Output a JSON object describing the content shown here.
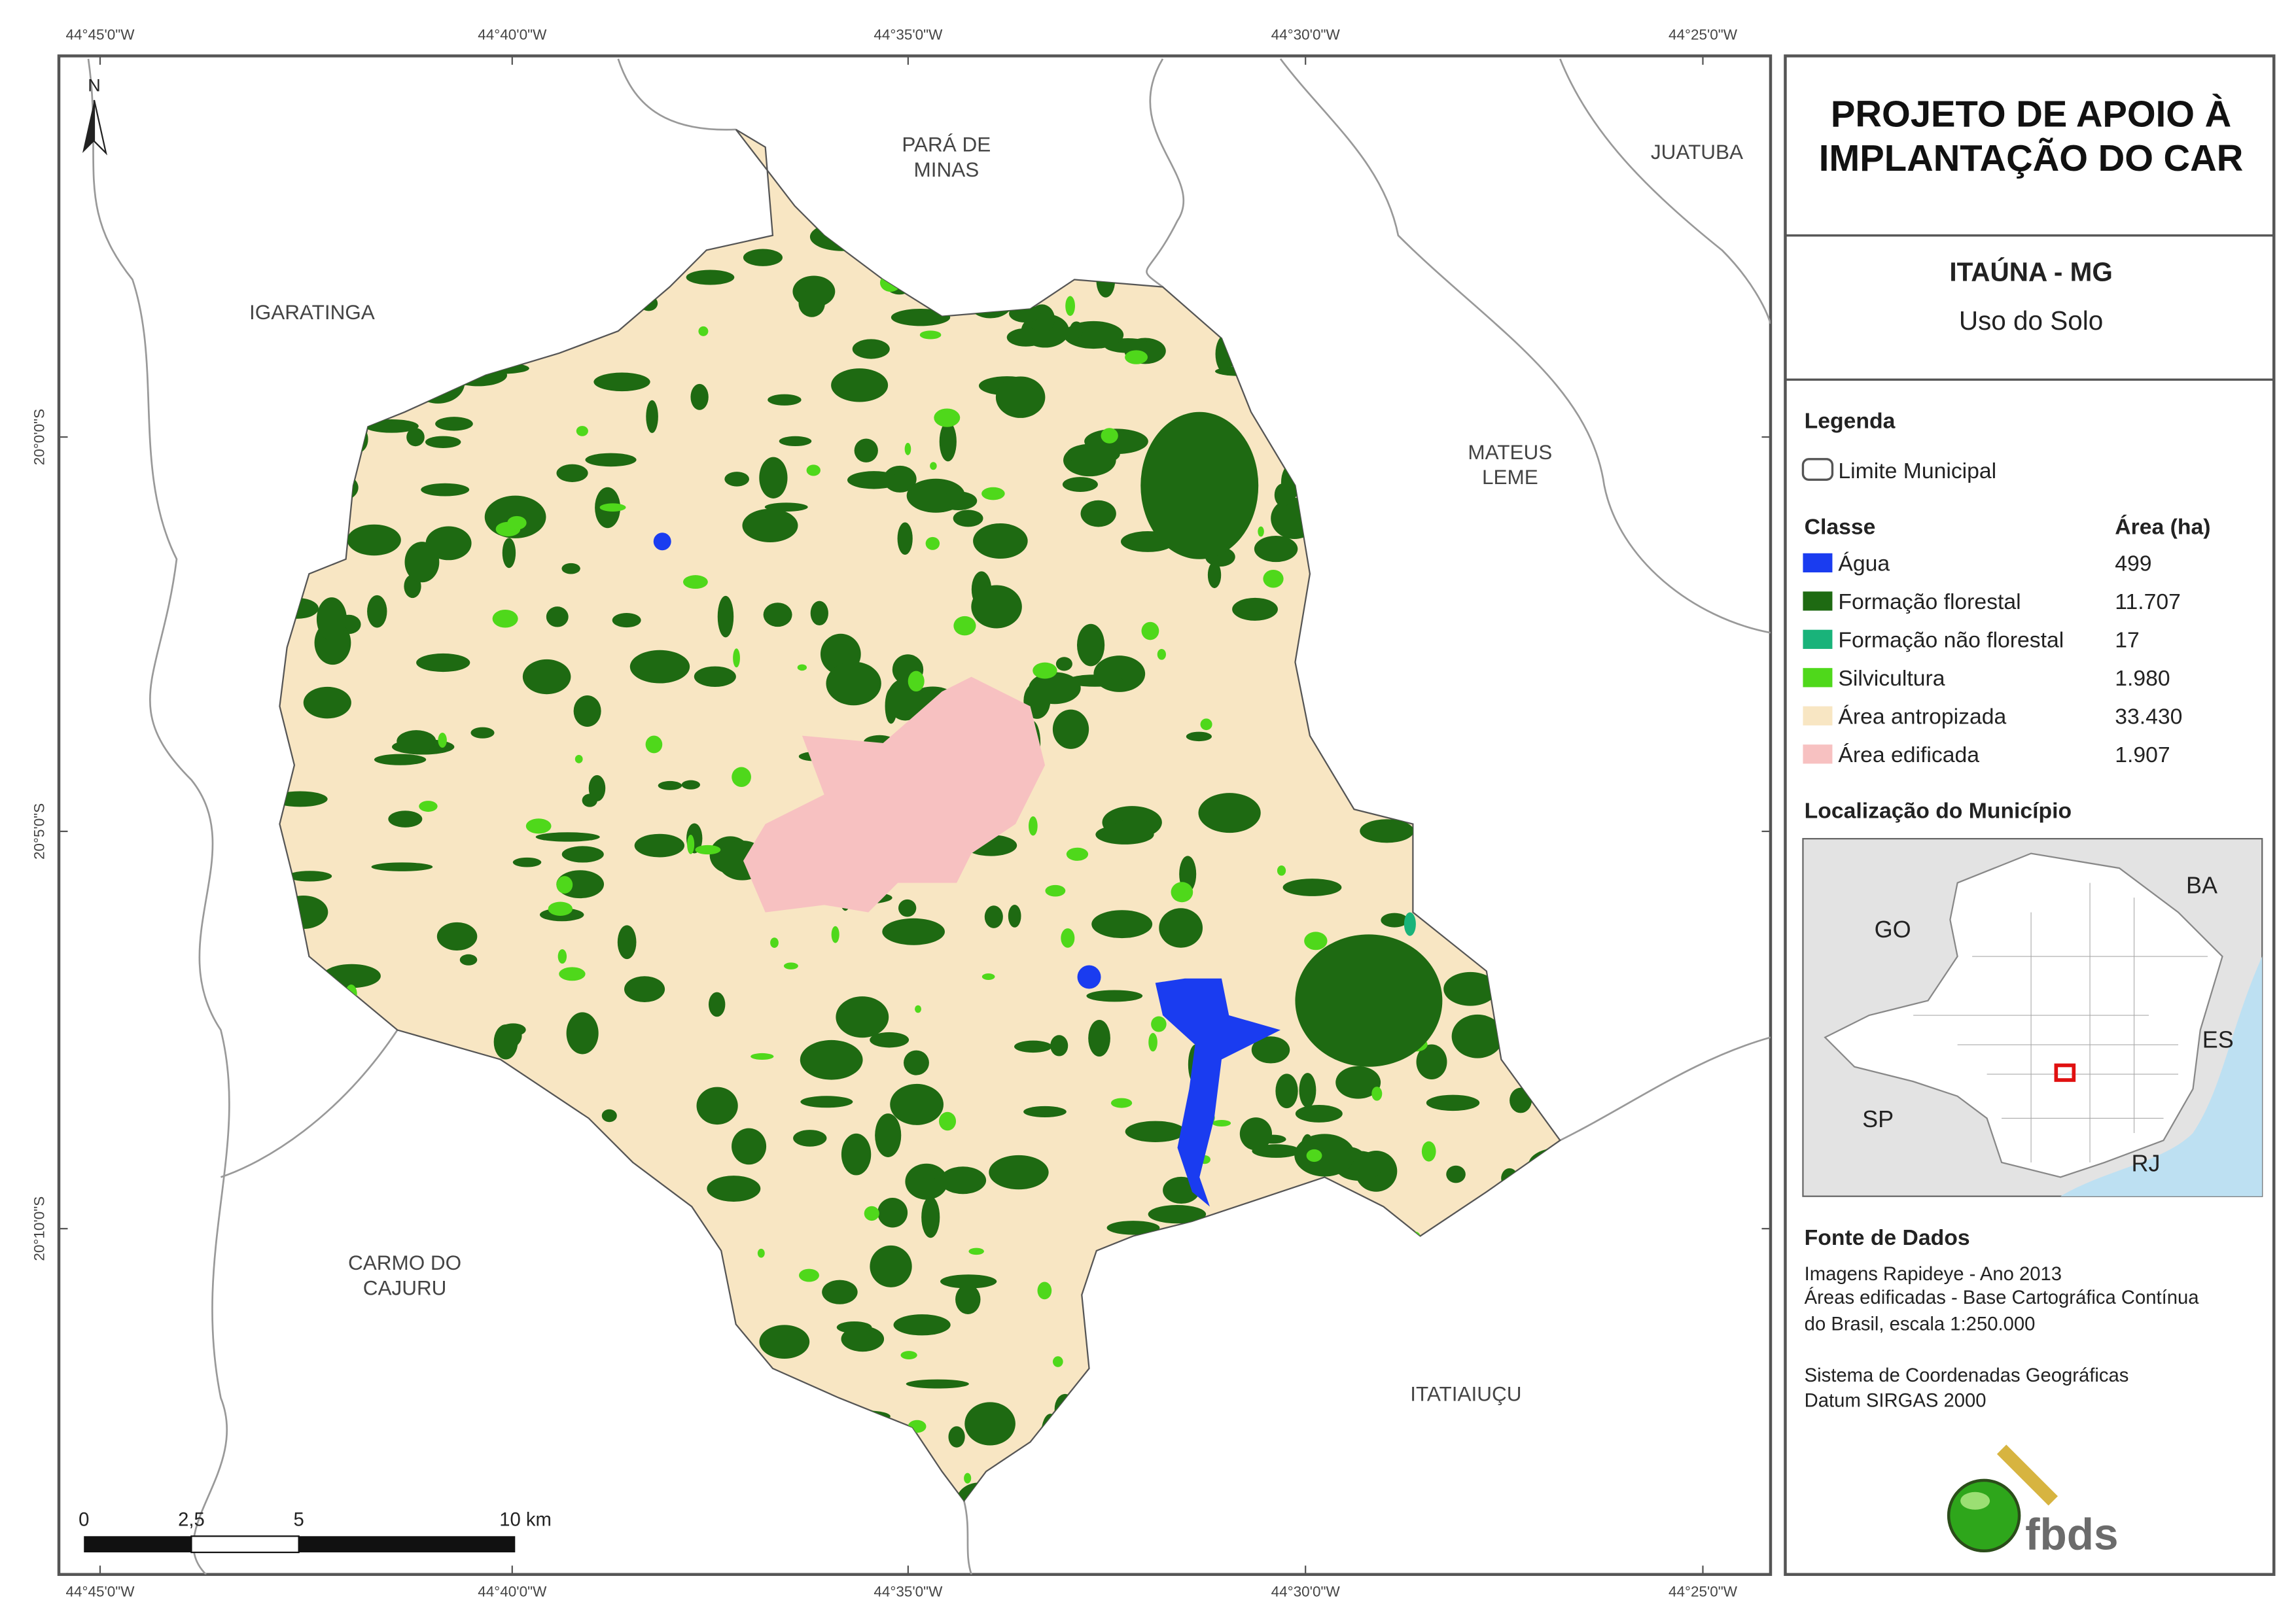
{
  "map": {
    "lon_labels": [
      "44°45'0\"W",
      "44°40'0\"W",
      "44°35'0\"W",
      "44°30'0\"W",
      "44°25'0\"W"
    ],
    "lat_labels": [
      "20°0'0\"S",
      "20°5'0\"S",
      "20°10'0\"S"
    ],
    "places": [
      [
        "IGARATINGA"
      ],
      [
        "PARÁ DE",
        "MINAS"
      ],
      [
        "JUATUBA"
      ],
      [
        "MATEUS",
        "LEME"
      ],
      [
        "CARMO DO",
        "CAJURU"
      ],
      [
        "ITATIAIUÇU"
      ]
    ],
    "north": "N",
    "scale": [
      "0",
      "2,5",
      "5",
      "10 km"
    ]
  },
  "title": [
    "PROJETO DE APOIO À",
    "IMPLANTAÇÃO DO CAR"
  ],
  "municipality": "ITAÚNA - MG",
  "subtitle": "Uso do Solo",
  "legend": {
    "heading": "Legenda",
    "boundary": "Limite Municipal",
    "class_header": "Classe",
    "area_header": "Área (ha)",
    "classes": [
      {
        "name": "Água",
        "area": "499",
        "color": "#1a3cf0"
      },
      {
        "name": "Formação florestal",
        "area": "11.707",
        "color": "#1e6a12"
      },
      {
        "name": "Formação não florestal",
        "area": "17",
        "color": "#19b37a"
      },
      {
        "name": "Silvicultura",
        "area": "1.980",
        "color": "#4fd81b"
      },
      {
        "name": "Área antropizada",
        "area": "33.430",
        "color": "#f8e6c3"
      },
      {
        "name": "Área edificada",
        "area": "1.907",
        "color": "#f7c1c1"
      }
    ]
  },
  "location": {
    "heading": "Localização do Município",
    "states": [
      "GO",
      "BA",
      "ES",
      "SP",
      "RJ"
    ]
  },
  "sources": {
    "heading": "Fonte de Dados",
    "lines": [
      "Imagens Rapideye - Ano 2013",
      "Áreas edificadas - Base Cartográfica Contínua",
      "do Brasil, escala 1:250.000",
      "Sistema de Coordenadas Geográficas",
      "Datum SIRGAS 2000"
    ]
  },
  "logo": "fbds"
}
